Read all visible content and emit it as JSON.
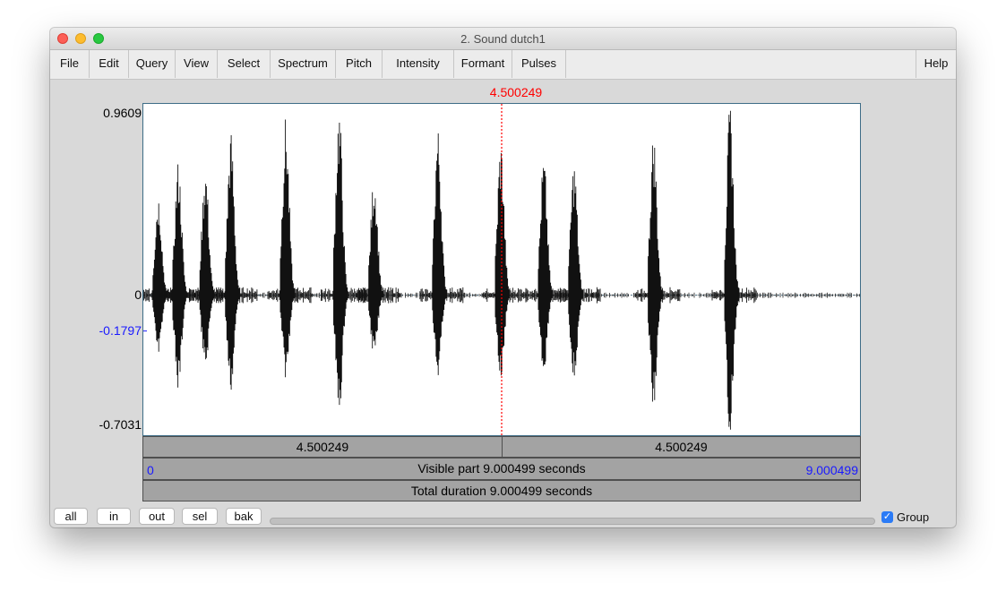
{
  "window": {
    "title": "2. Sound dutch1"
  },
  "menus": [
    "File",
    "Edit",
    "Query",
    "View",
    "Select",
    "Spectrum",
    "Pitch",
    "Intensity",
    "Formant",
    "Pulses"
  ],
  "help_label": "Help",
  "cursor": {
    "time_label": "4.500249",
    "time": 4.500249,
    "color": "#ff0000"
  },
  "amplitude": {
    "max_label": "0.9609",
    "zero_label": "0",
    "cursor_value_label": "-0.1797",
    "min_label": "-0.7031",
    "max": 0.9609,
    "min": -0.7031,
    "cursor_value": -0.1797
  },
  "selection_bar": {
    "left_label": "4.500249",
    "right_label": "4.500249"
  },
  "visible_bar": {
    "start_label": "0",
    "text": "Visible part 9.000499 seconds",
    "end_label": "9.000499"
  },
  "total_bar": {
    "text": "Total duration 9.000499 seconds"
  },
  "zoom_buttons": [
    "all",
    "in",
    "out",
    "sel",
    "bak"
  ],
  "group": {
    "label": "Group",
    "checked": true
  },
  "chart_data": {
    "type": "line",
    "x": [
      0.2,
      0.45,
      0.79,
      1.11,
      1.8,
      2.47,
      2.91,
      3.71,
      4.5,
      5.04,
      5.42,
      6.42,
      7.38,
      8.07
    ],
    "series": [
      {
        "values_max": [
          0.52,
          0.68,
          0.66,
          0.83,
          0.9,
          0.96,
          0.62,
          0.85,
          0.78,
          0.7,
          0.68,
          0.83,
          0.96,
          0.0
        ],
        "values_min": [
          -0.32,
          -0.48,
          -0.38,
          -0.49,
          -0.42,
          -0.61,
          -0.32,
          -0.42,
          -0.44,
          -0.39,
          -0.44,
          -0.59,
          -0.7,
          0.0
        ]
      }
    ],
    "xlim": [
      0,
      9.000499
    ],
    "ylim": [
      -0.7031,
      0.9609
    ]
  }
}
